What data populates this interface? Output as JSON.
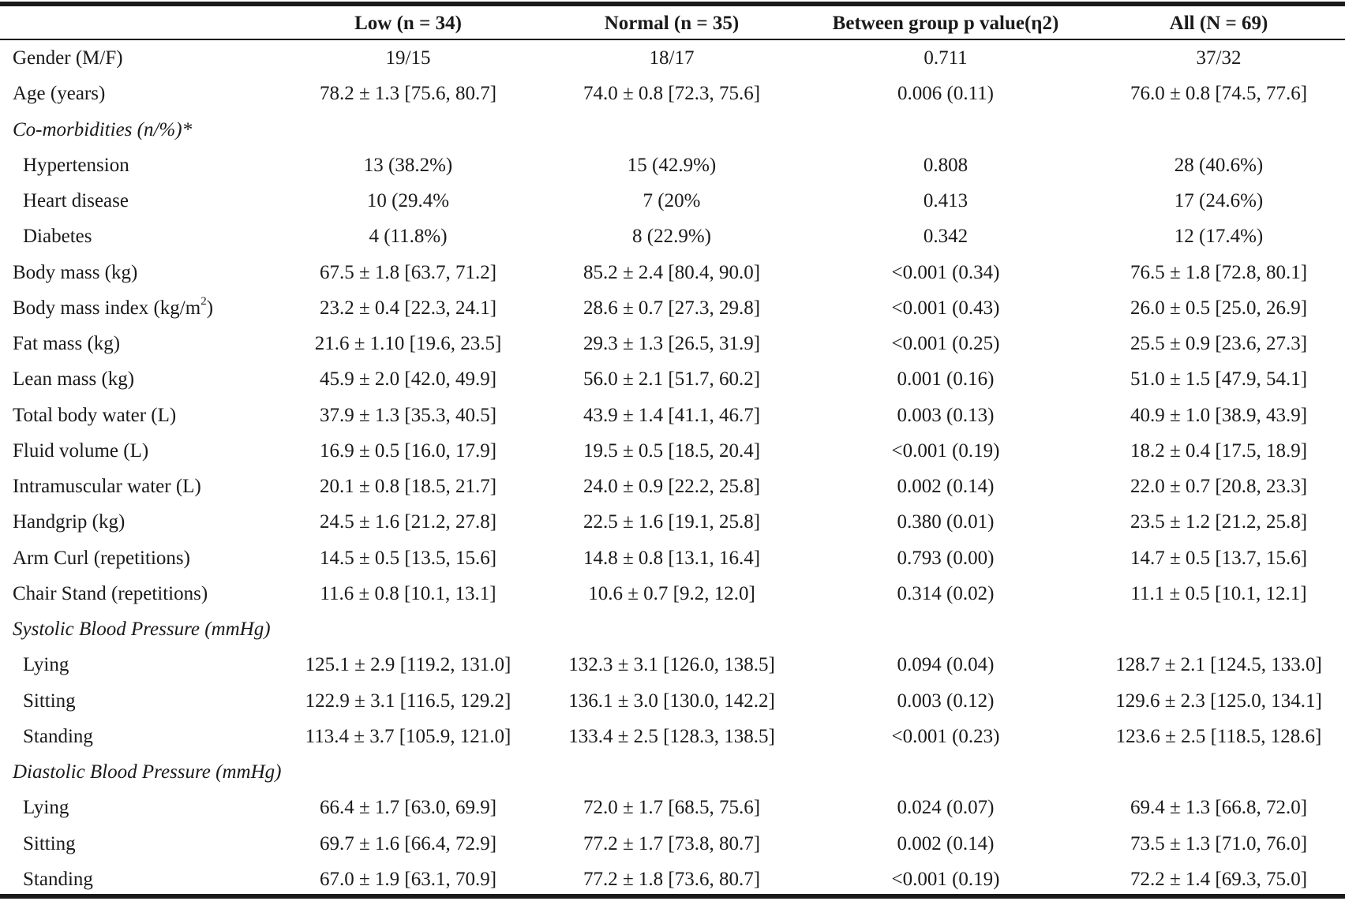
{
  "columns": [
    "Low (n = 34)",
    "Normal (n = 35)",
    "Between group p value(η2)",
    "All (N = 69)"
  ],
  "rows": [
    {
      "label": "Gender (M/F)",
      "type": "data",
      "values": [
        "19/15",
        "18/17",
        "0.711",
        "37/32"
      ]
    },
    {
      "label": "Age (years)",
      "type": "data",
      "values": [
        "78.2 ± 1.3 [75.6, 80.7]",
        "74.0 ± 0.8 [72.3, 75.6]",
        "0.006 (0.11)",
        "76.0 ± 0.8 [74.5, 77.6]"
      ]
    },
    {
      "label": "Co-morbidities (n/%)*",
      "type": "section",
      "values": []
    },
    {
      "label": "Hypertension",
      "type": "sub",
      "values": [
        "13 (38.2%)",
        "15 (42.9%)",
        "0.808",
        "28 (40.6%)"
      ]
    },
    {
      "label": "Heart disease",
      "type": "sub",
      "values": [
        "10 (29.4%",
        "7 (20%",
        "0.413",
        "17 (24.6%)"
      ]
    },
    {
      "label": "Diabetes",
      "type": "sub",
      "values": [
        "4 (11.8%)",
        "8 (22.9%)",
        "0.342",
        "12 (17.4%)"
      ]
    },
    {
      "label": "Body mass (kg)",
      "type": "data",
      "values": [
        "67.5 ± 1.8 [63.7, 71.2]",
        "85.2 ± 2.4 [80.4, 90.0]",
        "<0.001 (0.34)",
        "76.5 ± 1.8 [72.8, 80.1]"
      ]
    },
    {
      "label": "Body mass index (kg/m",
      "label_sup": "2",
      "label_suffix": ")",
      "type": "data",
      "values": [
        "23.2 ± 0.4 [22.3, 24.1]",
        "28.6 ± 0.7 [27.3, 29.8]",
        "<0.001 (0.43)",
        "26.0 ± 0.5 [25.0, 26.9]"
      ]
    },
    {
      "label": "Fat mass (kg)",
      "type": "data",
      "values": [
        "21.6 ± 1.10 [19.6, 23.5]",
        "29.3 ± 1.3 [26.5, 31.9]",
        "<0.001 (0.25)",
        "25.5 ± 0.9 [23.6, 27.3]"
      ]
    },
    {
      "label": "Lean mass (kg)",
      "type": "data",
      "values": [
        "45.9 ± 2.0 [42.0, 49.9]",
        "56.0 ± 2.1 [51.7, 60.2]",
        "0.001 (0.16)",
        "51.0 ± 1.5 [47.9, 54.1]"
      ]
    },
    {
      "label": "Total body water (L)",
      "type": "data",
      "values": [
        "37.9 ± 1.3 [35.3, 40.5]",
        "43.9 ± 1.4 [41.1, 46.7]",
        "0.003 (0.13)",
        "40.9 ± 1.0 [38.9, 43.9]"
      ]
    },
    {
      "label": "Fluid volume (L)",
      "type": "data",
      "values": [
        "16.9 ± 0.5 [16.0, 17.9]",
        "19.5 ± 0.5 [18.5, 20.4]",
        "<0.001 (0.19)",
        "18.2 ± 0.4 [17.5, 18.9]"
      ]
    },
    {
      "label": "Intramuscular water (L)",
      "type": "data",
      "values": [
        "20.1 ± 0.8 [18.5, 21.7]",
        "24.0 ± 0.9 [22.2, 25.8]",
        "0.002 (0.14)",
        "22.0 ± 0.7 [20.8, 23.3]"
      ]
    },
    {
      "label": "Handgrip (kg)",
      "type": "data",
      "values": [
        "24.5 ± 1.6 [21.2, 27.8]",
        "22.5 ± 1.6 [19.1, 25.8]",
        "0.380 (0.01)",
        "23.5 ± 1.2 [21.2, 25.8]"
      ]
    },
    {
      "label": "Arm Curl (repetitions)",
      "type": "data",
      "values": [
        "14.5 ± 0.5 [13.5, 15.6]",
        "14.8 ± 0.8 [13.1, 16.4]",
        "0.793 (0.00)",
        "14.7 ± 0.5 [13.7, 15.6]"
      ]
    },
    {
      "label": "Chair Stand (repetitions)",
      "type": "data",
      "values": [
        "11.6 ± 0.8 [10.1, 13.1]",
        "10.6 ± 0.7 [9.2, 12.0]",
        "0.314 (0.02)",
        "11.1 ± 0.5 [10.1, 12.1]"
      ]
    },
    {
      "label": "Systolic Blood Pressure (mmHg)",
      "type": "section",
      "values": []
    },
    {
      "label": "Lying",
      "type": "sub",
      "values": [
        "125.1 ± 2.9 [119.2, 131.0]",
        "132.3 ± 3.1 [126.0, 138.5]",
        "0.094 (0.04)",
        "128.7 ± 2.1 [124.5, 133.0]"
      ]
    },
    {
      "label": "Sitting",
      "type": "sub",
      "values": [
        "122.9 ± 3.1 [116.5, 129.2]",
        "136.1 ± 3.0 [130.0, 142.2]",
        "0.003 (0.12)",
        "129.6 ± 2.3 [125.0, 134.1]"
      ]
    },
    {
      "label": "Standing",
      "type": "sub",
      "values": [
        "113.4 ± 3.7 [105.9, 121.0]",
        "133.4 ± 2.5 [128.3, 138.5]",
        "<0.001 (0.23)",
        "123.6 ± 2.5 [118.5, 128.6]"
      ]
    },
    {
      "label": "Diastolic Blood Pressure (mmHg)",
      "type": "section",
      "values": []
    },
    {
      "label": "Lying",
      "type": "sub",
      "values": [
        "66.4 ± 1.7 [63.0, 69.9]",
        "72.0 ± 1.7 [68.5, 75.6]",
        "0.024 (0.07)",
        "69.4 ± 1.3 [66.8, 72.0]"
      ]
    },
    {
      "label": "Sitting",
      "type": "sub",
      "values": [
        "69.7 ± 1.6 [66.4, 72.9]",
        "77.2 ± 1.7 [73.8, 80.7]",
        "0.002 (0.14)",
        "73.5 ± 1.3 [71.0, 76.0]"
      ]
    },
    {
      "label": "Standing",
      "type": "sub",
      "values": [
        "67.0 ± 1.9 [63.1, 70.9]",
        "77.2 ± 1.8 [73.6, 80.7]",
        "<0.001 (0.19)",
        "72.2 ± 1.4 [69.3, 75.0]"
      ]
    }
  ]
}
